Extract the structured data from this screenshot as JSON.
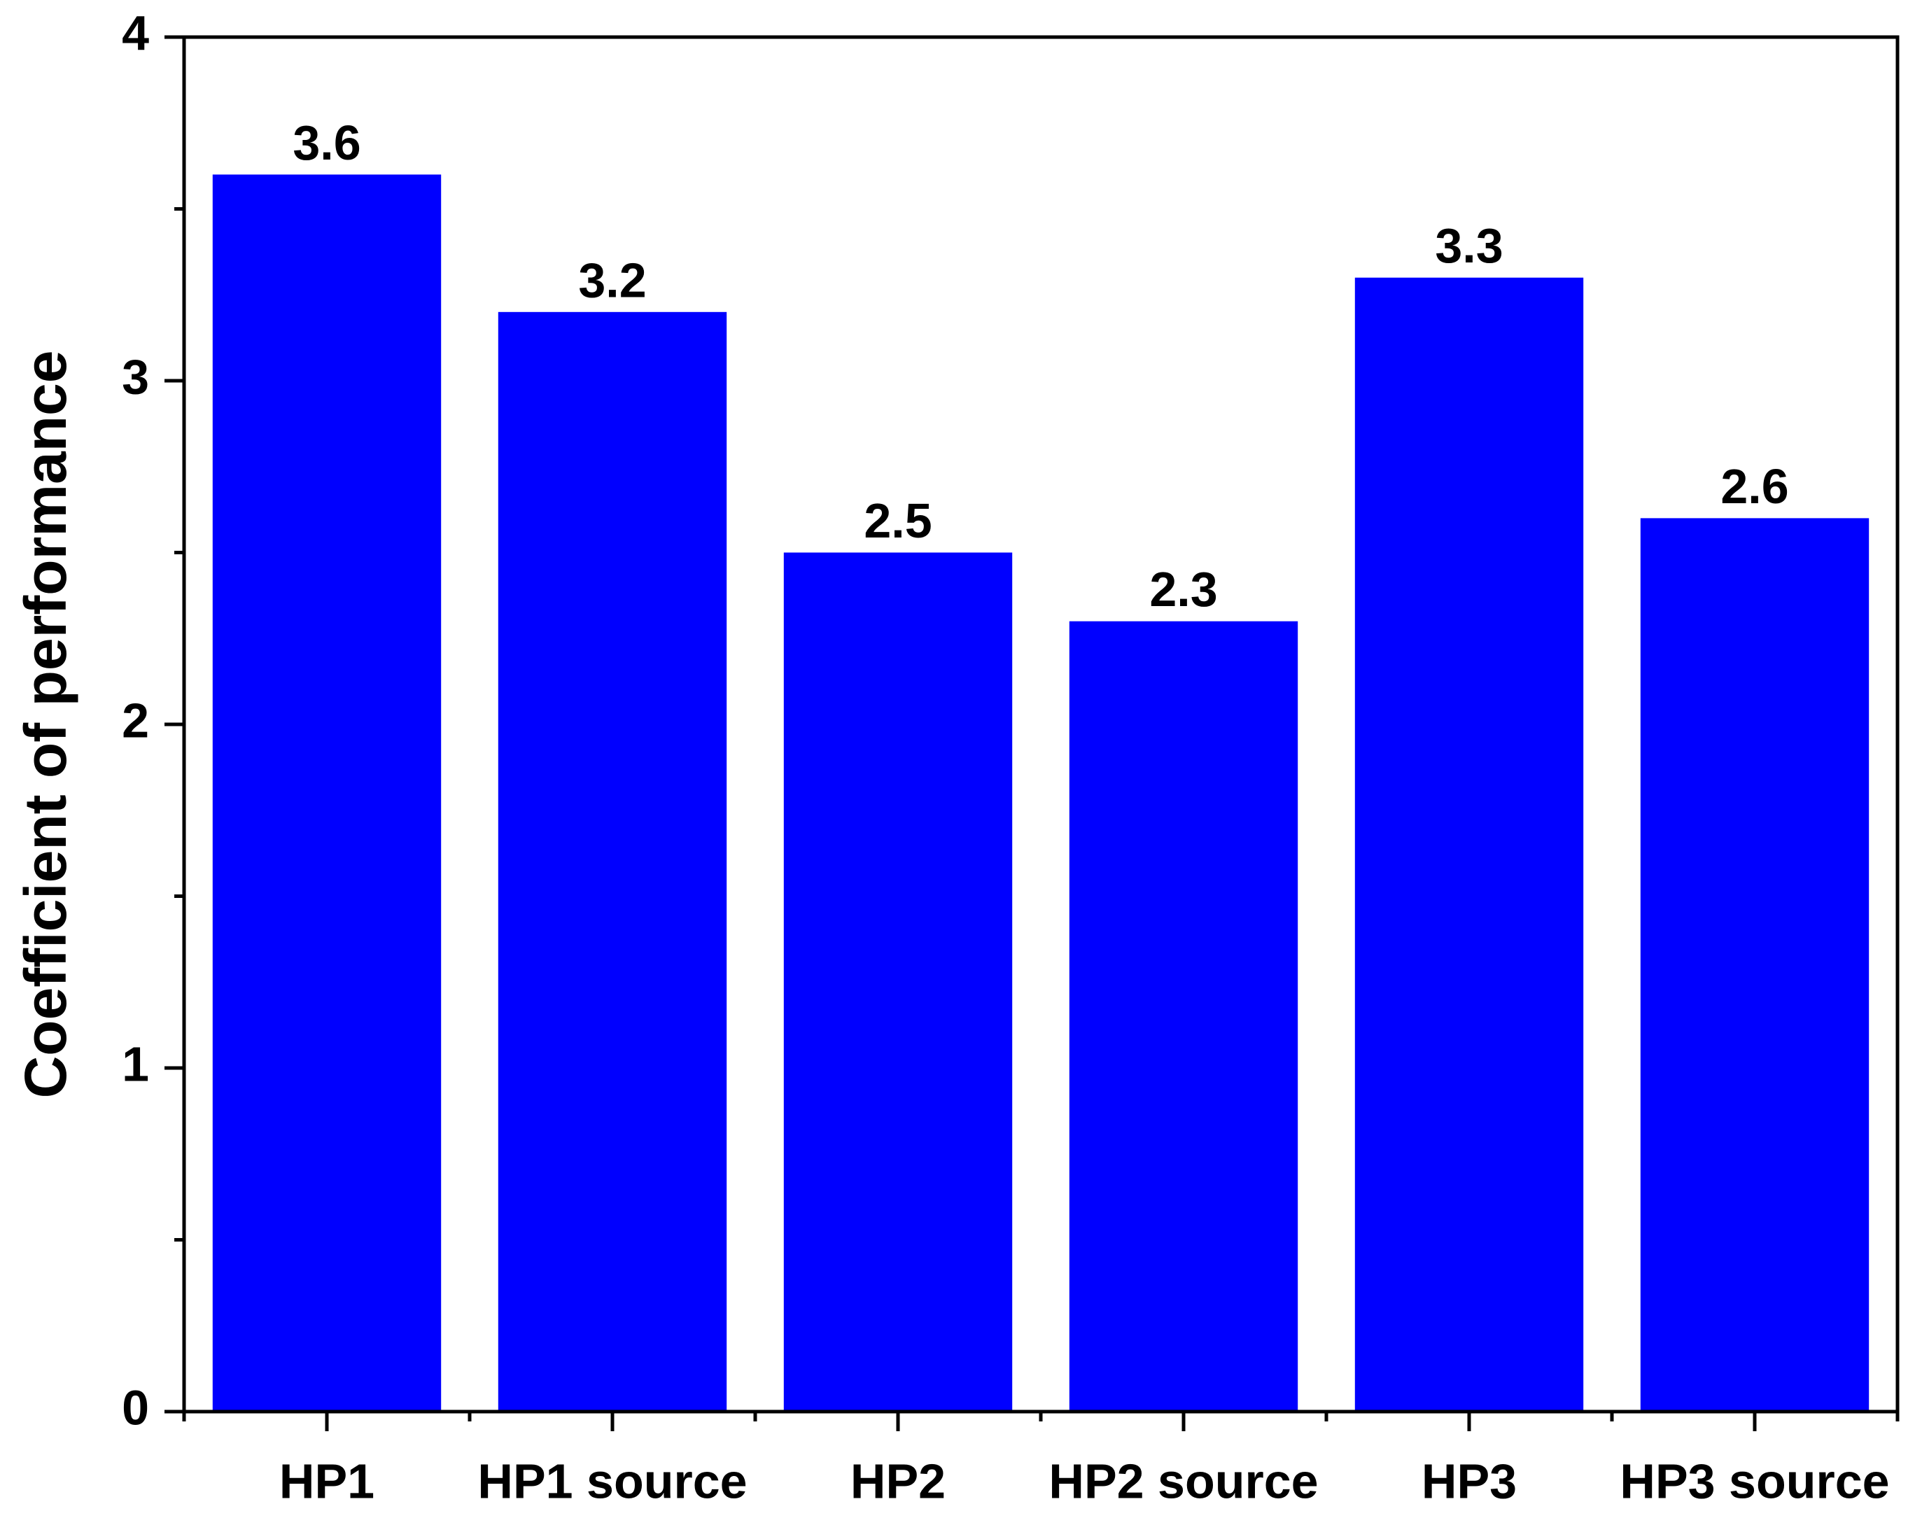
{
  "chart_data": {
    "type": "bar",
    "y_label": "Coefficient of performance",
    "categories": [
      "HP1",
      "HP1 source",
      "HP2",
      "HP2 source",
      "HP3",
      "HP3 source"
    ],
    "values": [
      3.6,
      3.2,
      2.5,
      2.3,
      3.3,
      2.6
    ],
    "color": "#0000ff",
    "ylim": [
      0,
      4
    ],
    "yticks": [
      0,
      1,
      2,
      3,
      4
    ],
    "yminorticks": [
      0.5,
      1.5,
      2.5,
      3.5
    ],
    "grid": false,
    "show_value_labels": true
  }
}
